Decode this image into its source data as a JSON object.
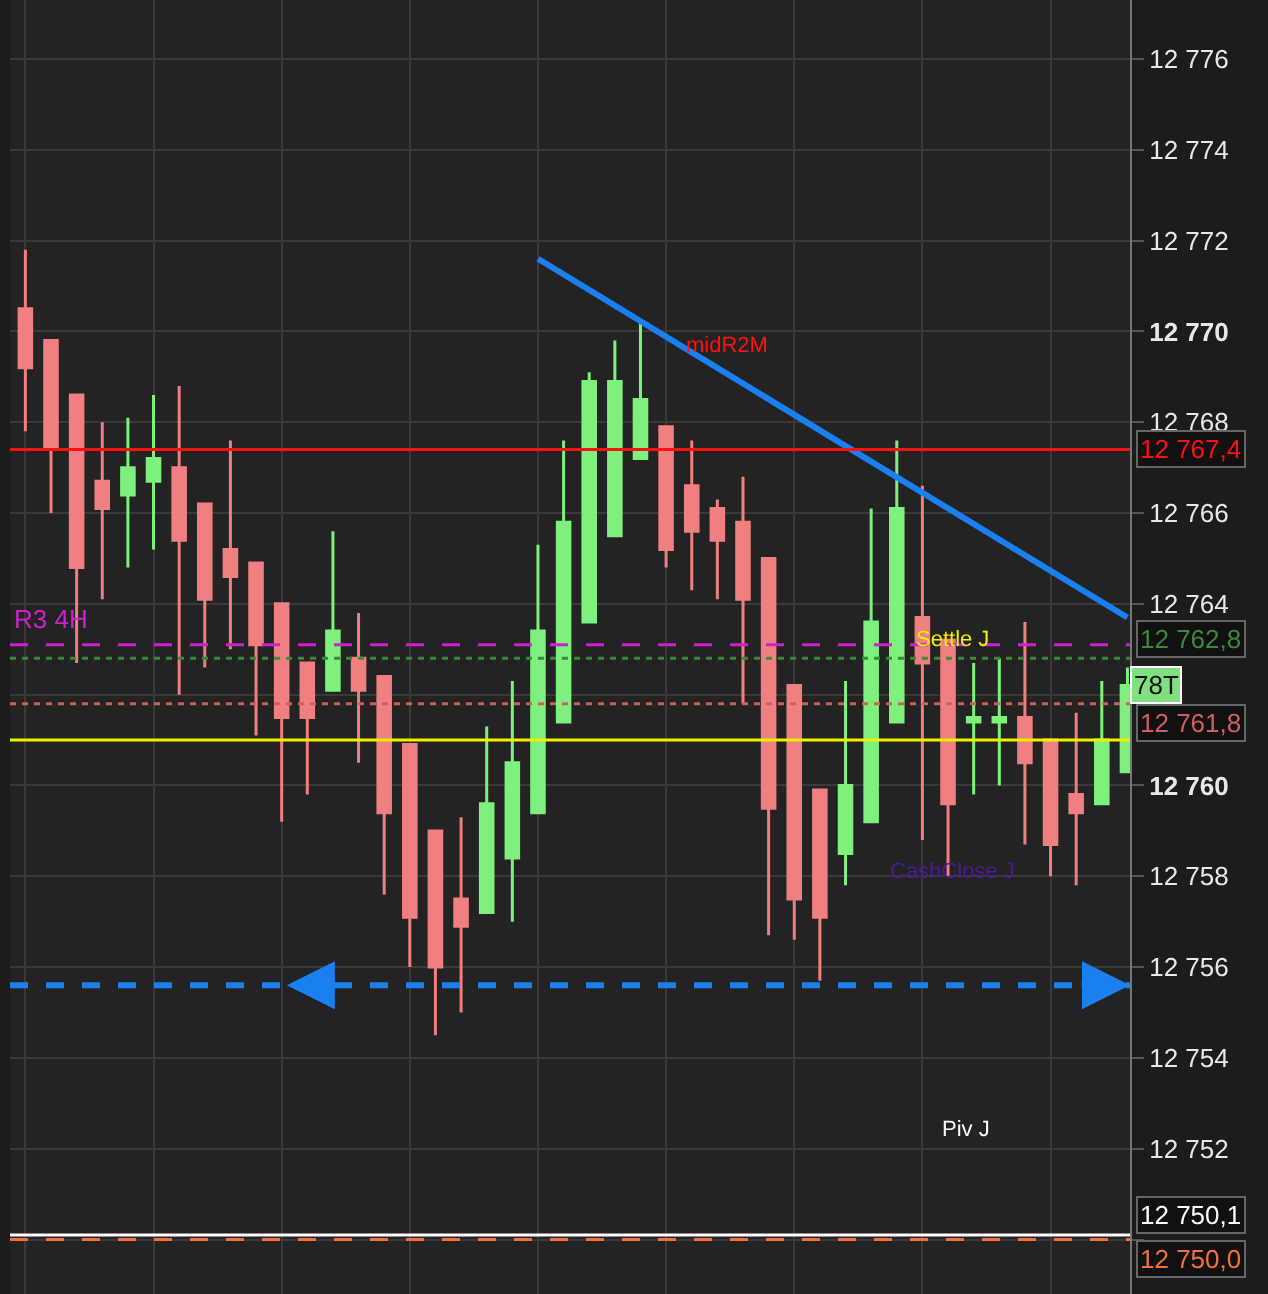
{
  "chart_data": {
    "type": "candlestick",
    "categories": [
      null,
      null,
      null,
      null,
      null,
      null,
      null,
      null,
      null,
      null,
      null,
      null,
      null,
      null,
      null,
      null,
      null,
      null,
      null,
      null,
      null,
      null,
      null,
      null,
      null,
      null,
      null,
      null,
      null,
      null,
      null,
      null,
      null,
      null,
      null,
      null,
      null,
      null,
      null,
      null,
      null,
      null,
      null,
      null
    ],
    "ohlc": [
      [
        12770.5,
        12771.8,
        12767.8,
        12769.2
      ],
      [
        12769.8,
        12769.8,
        12766.0,
        12767.4
      ],
      [
        12768.6,
        12768.6,
        12762.7,
        12764.8
      ],
      [
        12766.7,
        12768.0,
        12764.1,
        12766.1
      ],
      [
        12766.4,
        12768.1,
        12764.8,
        12767.0
      ],
      [
        12766.7,
        12768.6,
        12765.2,
        12767.2
      ],
      [
        12767.0,
        12768.8,
        12762.0,
        12765.4
      ],
      [
        12766.2,
        12766.2,
        12762.6,
        12764.1
      ],
      [
        12765.2,
        12767.6,
        12763.0,
        12764.6
      ],
      [
        12764.9,
        12764.9,
        12761.1,
        12763.1
      ],
      [
        12764.0,
        12764.0,
        12759.2,
        12761.5
      ],
      [
        12762.7,
        12762.7,
        12759.8,
        12761.5
      ],
      [
        12762.1,
        12765.6,
        12762.1,
        12763.4
      ],
      [
        12762.8,
        12763.8,
        12760.5,
        12762.1
      ],
      [
        12762.4,
        12762.4,
        12757.6,
        12759.4
      ],
      [
        12760.9,
        12760.9,
        12756.0,
        12757.1
      ],
      [
        12759.0,
        12759.0,
        12754.5,
        12756.0
      ],
      [
        12757.5,
        12759.3,
        12755.0,
        12756.9
      ],
      [
        12757.2,
        12761.3,
        12757.2,
        12759.6
      ],
      [
        12758.4,
        12762.3,
        12757.0,
        12760.5
      ],
      [
        12759.4,
        12765.3,
        12759.4,
        12763.4
      ],
      [
        12761.4,
        12767.6,
        12761.4,
        12765.8
      ],
      [
        12763.6,
        12769.1,
        12763.6,
        12768.9
      ],
      [
        12765.5,
        12769.8,
        12765.5,
        12768.9
      ],
      [
        12767.2,
        12770.2,
        12767.2,
        12768.5
      ],
      [
        12767.9,
        12767.9,
        12764.8,
        12765.2
      ],
      [
        12766.6,
        12767.6,
        12764.3,
        12765.6
      ],
      [
        12766.1,
        12766.3,
        12764.1,
        12765.4
      ],
      [
        12765.8,
        12766.8,
        12761.8,
        12764.1
      ],
      [
        12765.0,
        12765.0,
        12756.7,
        12759.5
      ],
      [
        12762.2,
        12762.2,
        12756.6,
        12757.5
      ],
      [
        12759.9,
        12759.9,
        12755.7,
        12757.1
      ],
      [
        12758.5,
        12762.3,
        12757.8,
        12760.0
      ],
      [
        12759.2,
        12766.1,
        12759.2,
        12763.6
      ],
      [
        12761.4,
        12767.6,
        12761.4,
        12766.1
      ],
      [
        12763.7,
        12766.6,
        12758.8,
        12762.7
      ],
      [
        12763.2,
        12763.2,
        12758.0,
        12759.6
      ],
      [
        12761.4,
        12762.7,
        12759.8,
        12761.5
      ],
      [
        12761.4,
        12762.8,
        12760.0,
        12761.5
      ],
      [
        12761.5,
        12763.6,
        12758.7,
        12760.5
      ],
      [
        12761.0,
        12761.0,
        12758.0,
        12758.7
      ],
      [
        12759.8,
        12761.6,
        12757.8,
        12759.4
      ],
      [
        12759.6,
        12762.3,
        12759.6,
        12761.0
      ],
      [
        12760.3,
        12762.6,
        12760.3,
        12762.2
      ]
    ],
    "colors": [
      "#f08080",
      "#f08080",
      "#f08080",
      "#f08080",
      "#7ef07e",
      "#7ef07e",
      "#f08080",
      "#f08080",
      "#f08080",
      "#f08080",
      "#f08080",
      "#f08080",
      "#7ef07e",
      "#f08080",
      "#f08080",
      "#f08080",
      "#f08080",
      "#f08080",
      "#7ef07e",
      "#7ef07e",
      "#7ef07e",
      "#7ef07e",
      "#7ef07e",
      "#7ef07e",
      "#7ef07e",
      "#f08080",
      "#f08080",
      "#f08080",
      "#f08080",
      "#f08080",
      "#f08080",
      "#f08080",
      "#7ef07e",
      "#7ef07e",
      "#7ef07e",
      "#f08080",
      "#f08080",
      "#7ef07e",
      "#7ef07e",
      "#f08080",
      "#f08080",
      "#f08080",
      "#7ef07e",
      "#7ef07e"
    ],
    "series": [
      {
        "type": "line",
        "values": [
          null,
          null,
          null,
          null,
          null,
          null,
          null,
          null,
          null,
          null,
          null,
          null,
          null,
          null,
          null,
          null,
          null,
          null,
          null,
          null,
          12771.6,
          null,
          null,
          null,
          null,
          null,
          null,
          null,
          null,
          null,
          null,
          null,
          null,
          null,
          null,
          null,
          null,
          null,
          null,
          null,
          null,
          null,
          null,
          12763.7
        ],
        "color": "#1a80f0"
      }
    ],
    "ylim": [
      12748.8,
      12777.3
    ],
    "yticks": [
      {
        "value": 12750,
        "label": null
      },
      {
        "value": 12752,
        "label": "12 752"
      },
      {
        "value": 12754,
        "label": "12 754"
      },
      {
        "value": 12756,
        "label": "12 756"
      },
      {
        "value": 12758,
        "label": "12 758"
      },
      {
        "value": 12760,
        "label": "12 760"
      },
      {
        "value": 12762,
        "label": null
      },
      {
        "value": 12764,
        "label": "12 764"
      },
      {
        "value": 12766,
        "label": "12 766"
      },
      {
        "value": 12768,
        "label": "12 768"
      },
      {
        "value": 12770,
        "label": "12 770"
      },
      {
        "value": 12772,
        "label": "12 772"
      },
      {
        "value": 12774,
        "label": "12 774"
      },
      {
        "value": 12776,
        "label": "12 776"
      }
    ],
    "tick_labels": "y",
    "grid": true,
    "ref_lines": [
      {
        "axis": "y",
        "value": 12767.4,
        "label": "12 767,4",
        "color": "#ff1010",
        "line_style": "solid"
      },
      {
        "axis": "y",
        "value": 12763.1,
        "label": "R3 4H",
        "color": "#cc22cc",
        "line_style": "dashed"
      },
      {
        "axis": "y",
        "value": 12762.8,
        "label": "12 762,8",
        "color": "#3a8a3a",
        "line_style": "dotted"
      },
      {
        "axis": "y",
        "value": 12761.8,
        "label": "12 761,8",
        "color": "#d06060",
        "line_style": "dotted"
      },
      {
        "axis": "y",
        "value": 12761.0,
        "color": "#f0f000",
        "line_style": "solid"
      },
      {
        "axis": "y",
        "value": 12755.6,
        "color": "#1a80f0",
        "line_style": "dashed"
      },
      {
        "axis": "y",
        "value": 12750.1,
        "label": "12 750,1",
        "color": "#ffffff",
        "line_style": "solid"
      },
      {
        "axis": "y",
        "value": 12750.0,
        "label": "12 750,0",
        "color": "#f07040",
        "line_style": "dashed"
      }
    ],
    "annotations": [
      "midR2M",
      "Settle J",
      "CashClose J",
      "Piv J",
      "78T"
    ]
  }
}
